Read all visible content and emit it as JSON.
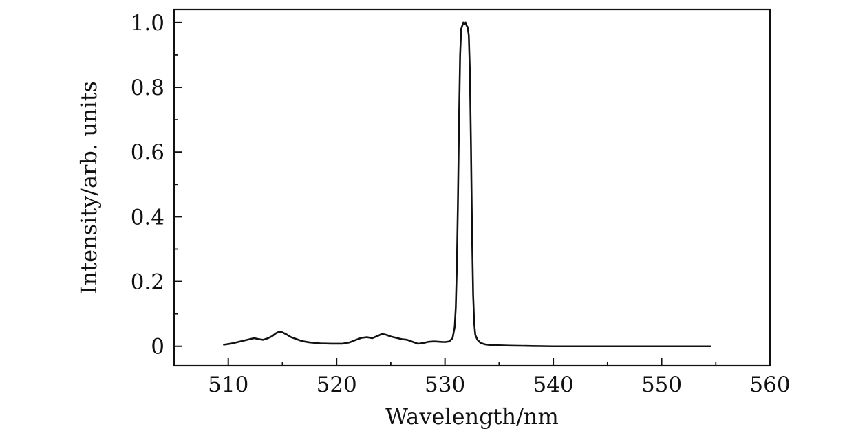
{
  "chart_data": {
    "type": "line",
    "title": "",
    "xlabel": "Wavelength/nm",
    "ylabel": "Intensity/arb. units",
    "xlim": [
      505,
      560
    ],
    "ylim": [
      -0.06,
      1.04
    ],
    "xticks": [
      510,
      520,
      530,
      540,
      550,
      560
    ],
    "xtick_labels": [
      "510",
      "520",
      "530",
      "540",
      "550",
      "560"
    ],
    "yticks": [
      0,
      0.2,
      0.4,
      0.6,
      0.8,
      1.0
    ],
    "ytick_labels": [
      "0",
      "0.2",
      "0.4",
      "0.6",
      "0.8",
      "1.0"
    ],
    "grid": false,
    "legend": "none",
    "series": [
      {
        "color": "#111111",
        "x": [
          509.6,
          510.0,
          510.5,
          511.0,
          511.5,
          512.0,
          512.4,
          512.8,
          513.2,
          513.6,
          514.0,
          514.4,
          514.7,
          515.0,
          515.4,
          515.8,
          516.3,
          516.8,
          517.5,
          518.5,
          519.5,
          520.5,
          521.2,
          521.8,
          522.3,
          522.8,
          523.3,
          523.8,
          524.2,
          524.6,
          525.0,
          525.5,
          526.0,
          526.5,
          527.0,
          527.5,
          528.0,
          528.5,
          529.0,
          529.5,
          530.0,
          530.4,
          530.7,
          530.9,
          531.0,
          531.1,
          531.2,
          531.3,
          531.4,
          531.5,
          531.6,
          531.7,
          531.8,
          531.9,
          532.0,
          532.1,
          532.2,
          532.3,
          532.4,
          532.5,
          532.6,
          532.7,
          532.8,
          533.0,
          533.3,
          533.7,
          534.2,
          535.0,
          536.0,
          538.0,
          540.0,
          545.0,
          550.0,
          554.5
        ],
        "y": [
          0.005,
          0.007,
          0.01,
          0.014,
          0.018,
          0.022,
          0.025,
          0.022,
          0.02,
          0.024,
          0.03,
          0.04,
          0.045,
          0.043,
          0.036,
          0.028,
          0.022,
          0.016,
          0.012,
          0.009,
          0.008,
          0.008,
          0.012,
          0.02,
          0.026,
          0.028,
          0.025,
          0.032,
          0.038,
          0.035,
          0.03,
          0.026,
          0.022,
          0.02,
          0.014,
          0.008,
          0.01,
          0.014,
          0.015,
          0.014,
          0.013,
          0.015,
          0.025,
          0.06,
          0.12,
          0.25,
          0.45,
          0.7,
          0.9,
          0.98,
          0.99,
          1.0,
          0.995,
          1.0,
          0.99,
          0.985,
          0.96,
          0.85,
          0.62,
          0.35,
          0.16,
          0.07,
          0.035,
          0.02,
          0.01,
          0.006,
          0.004,
          0.003,
          0.002,
          0.001,
          0.0,
          0.0,
          0.0,
          0.0
        ]
      }
    ]
  }
}
